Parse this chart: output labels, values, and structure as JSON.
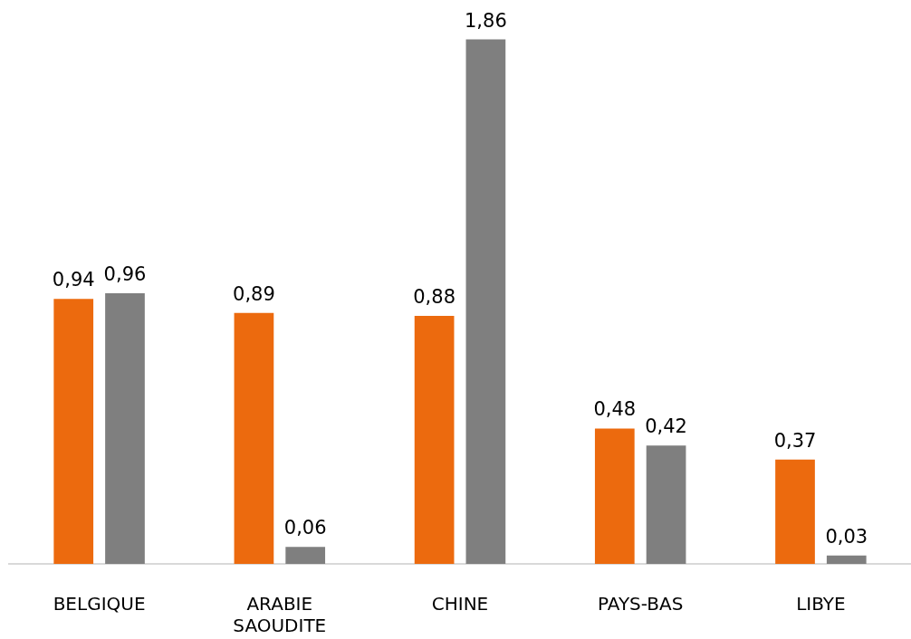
{
  "chart_data": {
    "type": "bar",
    "categories": [
      "BELGIQUE",
      "ARABIE SAOUDITE",
      "CHINE",
      "PAYS-BAS",
      "LIBYE"
    ],
    "series": [
      {
        "color": "#ec6a0e",
        "values": [
          0.94,
          0.89,
          0.88,
          0.48,
          0.37
        ],
        "value_labels": [
          "0,94",
          "0,89",
          "0,88",
          "0,48",
          "0,37"
        ]
      },
      {
        "color": "#7f7f7f",
        "values": [
          0.96,
          0.06,
          1.86,
          0.42,
          0.03
        ],
        "value_labels": [
          "0,96",
          "0,06",
          "1,86",
          "0,42",
          "0,03"
        ]
      }
    ]
  }
}
